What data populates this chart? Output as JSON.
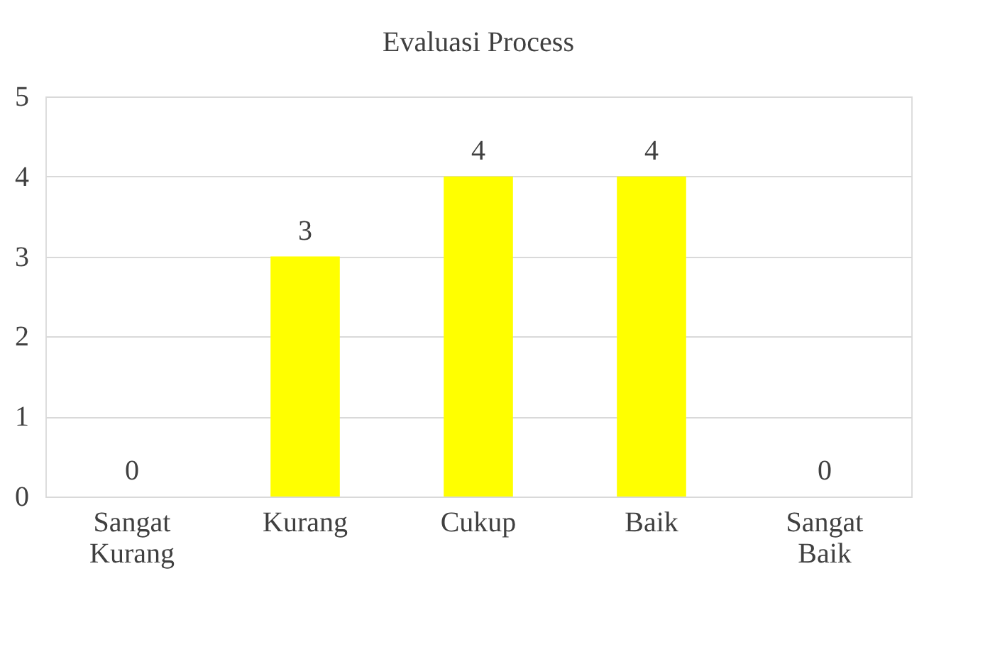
{
  "chart_data": {
    "type": "bar",
    "title": "Evaluasi Process",
    "categories": [
      "Sangat Kurang",
      "Kurang",
      "Cukup",
      "Baik",
      "Sangat Baik"
    ],
    "values": [
      0,
      3,
      4,
      4,
      0
    ],
    "color": "#ffff00",
    "ylim": [
      0,
      5
    ],
    "yticks": [
      0,
      1,
      2,
      3,
      4,
      5
    ],
    "grid": "y",
    "data_labels": true
  }
}
